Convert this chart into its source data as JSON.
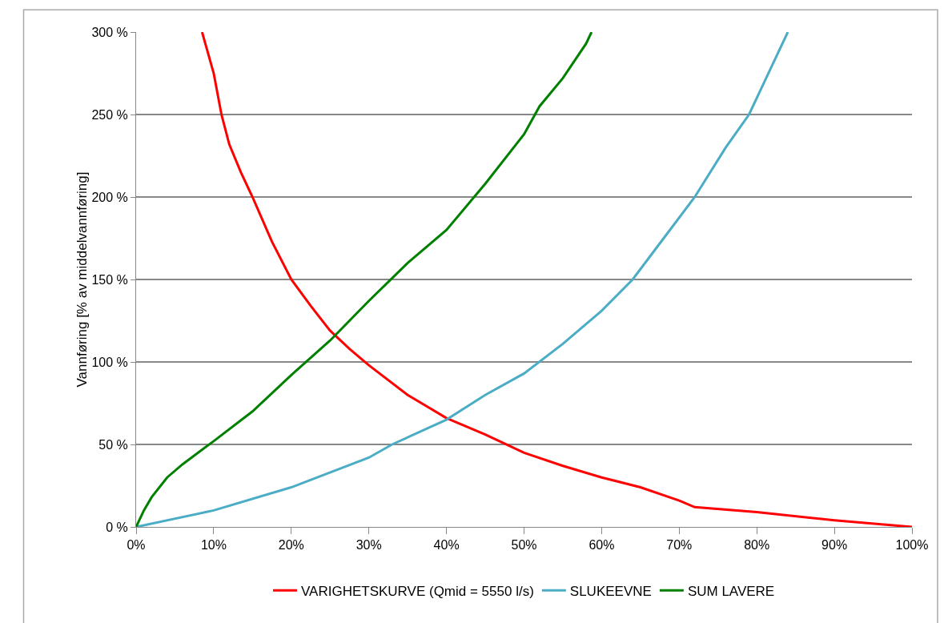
{
  "chart_data": {
    "type": "line",
    "ylabel": "Vannføring [% av middelvannføring]",
    "xlim": [
      0,
      100
    ],
    "ylim": [
      0,
      300
    ],
    "xticks": [
      {
        "value": 0,
        "label": "0%"
      },
      {
        "value": 10,
        "label": "10%"
      },
      {
        "value": 20,
        "label": "20%"
      },
      {
        "value": 30,
        "label": "30%"
      },
      {
        "value": 40,
        "label": "40%"
      },
      {
        "value": 50,
        "label": "50%"
      },
      {
        "value": 60,
        "label": "60%"
      },
      {
        "value": 70,
        "label": "70%"
      },
      {
        "value": 80,
        "label": "80%"
      },
      {
        "value": 90,
        "label": "90%"
      },
      {
        "value": 100,
        "label": "100%"
      }
    ],
    "yticks": [
      {
        "value": 0,
        "label": "0 %"
      },
      {
        "value": 50,
        "label": "50 %"
      },
      {
        "value": 100,
        "label": "100 %"
      },
      {
        "value": 150,
        "label": "150 %"
      },
      {
        "value": 200,
        "label": "200 %"
      },
      {
        "value": 250,
        "label": "250 %"
      },
      {
        "value": 300,
        "label": "300 %"
      }
    ],
    "grid": "y",
    "legend": "bottom",
    "marker": "none",
    "line_style": "solid",
    "series": [
      {
        "name": "VARIGHETSKURVE (Qmid = 5550 l/s)",
        "color": "#ff0000",
        "x": [
          8.5,
          10,
          11,
          12,
          13.5,
          15,
          17.5,
          20,
          22.5,
          25,
          27.5,
          30,
          35,
          40,
          45,
          50,
          55,
          60,
          65,
          70,
          72,
          80,
          90,
          100
        ],
        "values": [
          300,
          275,
          250,
          232,
          215,
          200,
          173,
          150,
          134,
          119,
          108,
          98,
          80,
          66,
          56,
          45,
          37,
          30,
          24,
          16,
          12,
          9,
          4,
          0
        ]
      },
      {
        "name": "SLUKEEVNE",
        "color": "#4bacc6",
        "x": [
          0,
          10,
          20,
          30,
          33,
          40,
          45,
          50,
          55,
          60,
          64,
          68,
          72,
          76,
          79,
          82,
          84
        ],
        "values": [
          0,
          10,
          24,
          42,
          50,
          65,
          80,
          93,
          111,
          131,
          150,
          175,
          200,
          230,
          250,
          280,
          300
        ]
      },
      {
        "name": "SUM LAVERE",
        "color": "#008000",
        "x": [
          0,
          1,
          2,
          4,
          6,
          10,
          15,
          20,
          25,
          30,
          35,
          40,
          45,
          50,
          52,
          55,
          58,
          58.7
        ],
        "values": [
          0,
          10,
          18,
          30,
          38,
          52,
          70,
          92,
          113,
          137,
          160,
          180,
          208,
          238,
          255,
          272,
          293,
          300
        ]
      }
    ]
  }
}
